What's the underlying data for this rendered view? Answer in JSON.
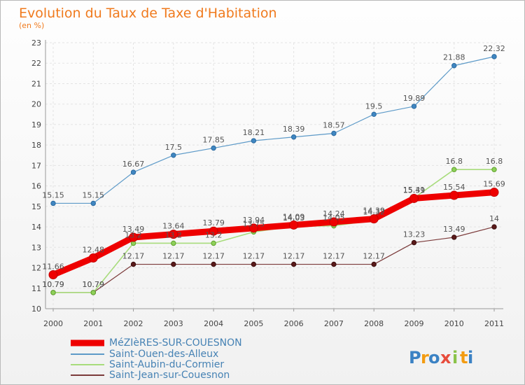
{
  "chart_data": {
    "type": "line",
    "title": "Evolution du Taux de Taxe d'Habitation",
    "subtitle": "(en %)",
    "x": [
      "2000",
      "2001",
      "2002",
      "2003",
      "2004",
      "2005",
      "2006",
      "2007",
      "2008",
      "2009",
      "2010",
      "2011"
    ],
    "ylim": [
      10,
      23
    ],
    "yticks": [
      10,
      11,
      12,
      13,
      14,
      15,
      16,
      17,
      18,
      19,
      20,
      21,
      22,
      23
    ],
    "grid": true,
    "legend_position": "bottom-left",
    "series": [
      {
        "name": "MéZIèRES-SUR-COUESNON",
        "color": "#ee0000",
        "values": [
          11.66,
          12.48,
          13.49,
          13.64,
          13.79,
          13.94,
          14.09,
          14.24,
          14.39,
          15.39,
          15.54,
          15.69
        ]
      },
      {
        "name": "Saint-Ouen-des-Alleux",
        "color": "#5d9ac8",
        "values": [
          15.15,
          15.15,
          16.67,
          17.5,
          17.85,
          18.21,
          18.39,
          18.57,
          19.5,
          19.89,
          21.88,
          22.32
        ]
      },
      {
        "name": "Saint-Aubin-du-Cormier",
        "color": "#a8dc7c",
        "values": [
          10.79,
          10.79,
          13.2,
          13.2,
          13.2,
          13.75,
          14.03,
          14.05,
          14.32,
          15.41,
          16.8,
          16.8
        ]
      },
      {
        "name": "Saint-Jean-sur-Couesnon",
        "color": "#7b3a3a",
        "values": [
          10.79,
          10.79,
          12.17,
          12.17,
          12.17,
          12.17,
          12.17,
          12.17,
          12.17,
          13.23,
          13.49,
          14
        ]
      }
    ]
  },
  "logo": {
    "text": "Proxiti",
    "letters": [
      "P",
      "r",
      "o",
      "x",
      "i",
      "t",
      "i"
    ],
    "colors": [
      "#3b82c4",
      "#f39c12",
      "#3b82c4",
      "#e74c3c",
      "#8bc34a",
      "#f39c12",
      "#3b82c4"
    ]
  }
}
